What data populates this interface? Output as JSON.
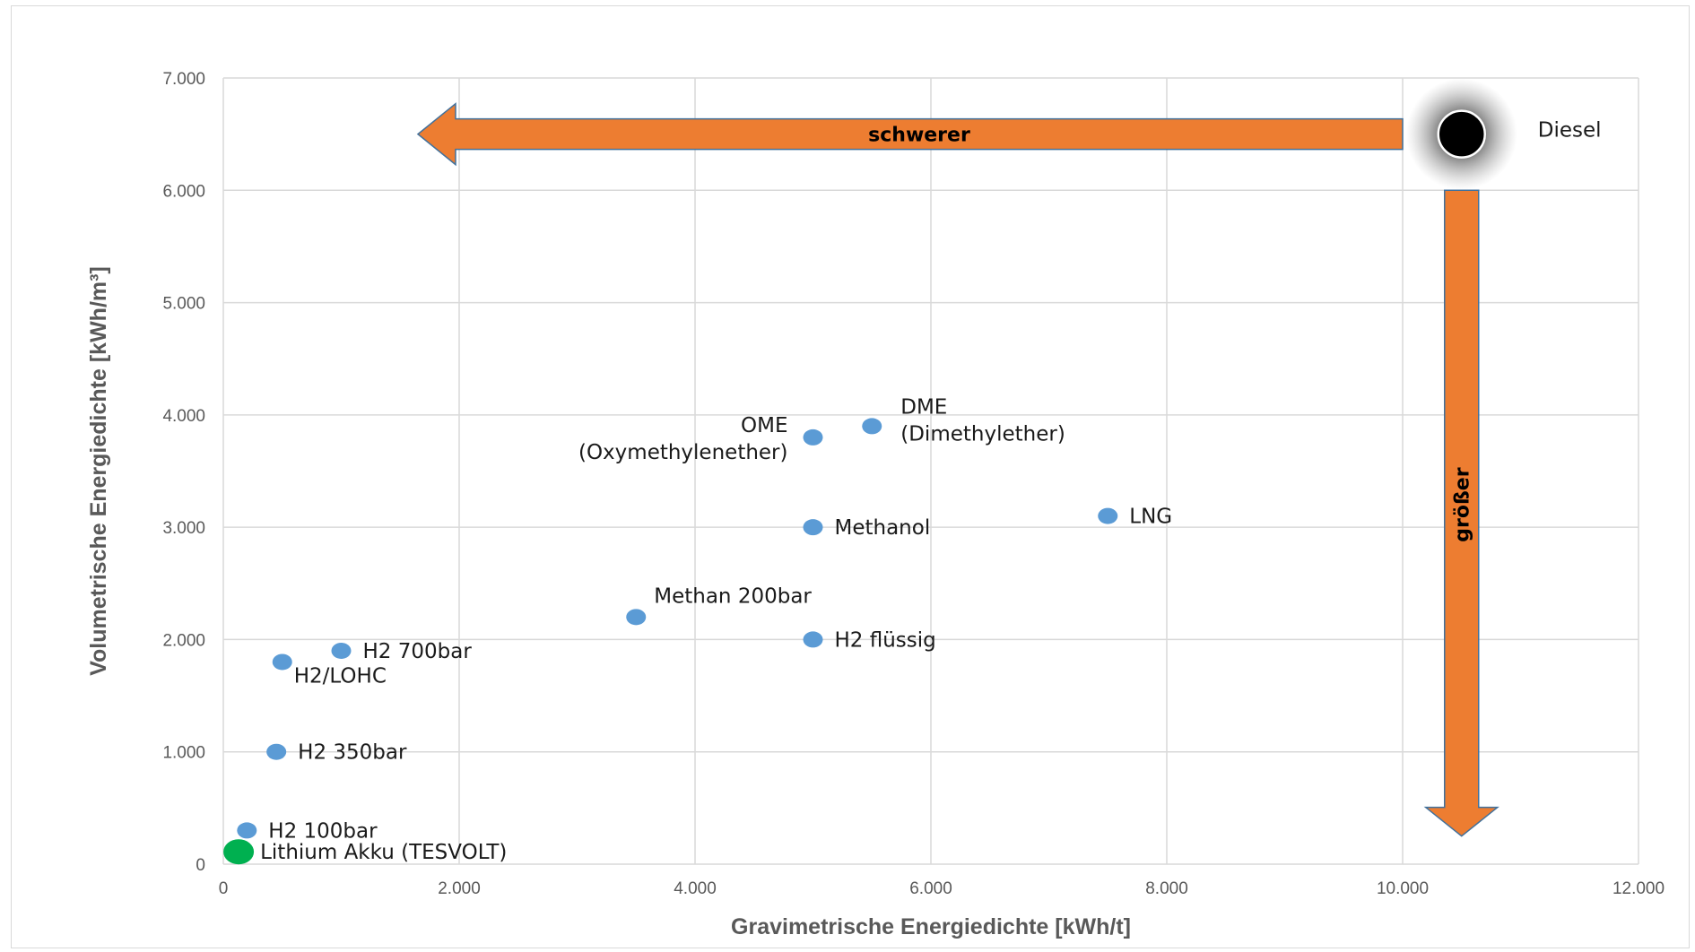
{
  "chart_data": {
    "type": "scatter",
    "xlabel": "Gravimetrische Energiedichte [kWh/t]",
    "ylabel": "Volumetrische Energiedichte [kWh/m³]",
    "xlim": [
      0,
      12000
    ],
    "ylim": [
      0,
      7000
    ],
    "x_ticks": [
      "0",
      "2.000",
      "4.000",
      "6.000",
      "8.000",
      "10.000",
      "12.000"
    ],
    "y_ticks": [
      "0",
      "1.000",
      "2.000",
      "3.000",
      "4.000",
      "5.000",
      "6.000",
      "7.000"
    ],
    "x_tick_values": [
      0,
      2000,
      4000,
      6000,
      8000,
      10000,
      12000
    ],
    "y_tick_values": [
      0,
      1000,
      2000,
      3000,
      4000,
      5000,
      6000,
      7000
    ],
    "grid": true,
    "colors": {
      "point": "#5b9bd5",
      "highlight": "#00b050",
      "diesel": "#000000",
      "arrow": "#ed7d31",
      "grid": "#d9d9d9"
    },
    "points": [
      {
        "label": "Diesel",
        "x": 10500,
        "y": 6500,
        "style": "diesel"
      },
      {
        "label": "DME\n(Dimethylether)",
        "x": 5500,
        "y": 3900,
        "style": "point",
        "align": "right-up"
      },
      {
        "label": "OME\n(Oxymethylenether)",
        "x": 5000,
        "y": 3800,
        "style": "point",
        "align": "left"
      },
      {
        "label": "LNG",
        "x": 7500,
        "y": 3100,
        "style": "point",
        "align": "right"
      },
      {
        "label": "Methanol",
        "x": 5000,
        "y": 3000,
        "style": "point",
        "align": "right"
      },
      {
        "label": "Methan 200bar",
        "x": 3500,
        "y": 2200,
        "style": "point",
        "align": "above"
      },
      {
        "label": "H2 flüssig",
        "x": 5000,
        "y": 2000,
        "style": "point",
        "align": "right"
      },
      {
        "label": "H2 700bar",
        "x": 1000,
        "y": 1900,
        "style": "point",
        "align": "right"
      },
      {
        "label": "H2/LOHC",
        "x": 500,
        "y": 1800,
        "style": "point",
        "align": "below"
      },
      {
        "label": "H2 350bar",
        "x": 450,
        "y": 1000,
        "style": "point",
        "align": "right"
      },
      {
        "label": "H2 100bar",
        "x": 200,
        "y": 300,
        "style": "point",
        "align": "right"
      },
      {
        "label": "Lithium Akku (TESVOLT)",
        "x": 130,
        "y": 110,
        "style": "highlight",
        "align": "right"
      }
    ],
    "annotations": [
      {
        "type": "arrow",
        "direction": "left",
        "label": "schwerer",
        "from": [
          10000,
          6500
        ],
        "to": [
          1650,
          6500
        ]
      },
      {
        "type": "arrow",
        "direction": "down",
        "label": "größer",
        "from": [
          10500,
          6000
        ],
        "to": [
          10500,
          250
        ]
      }
    ]
  }
}
